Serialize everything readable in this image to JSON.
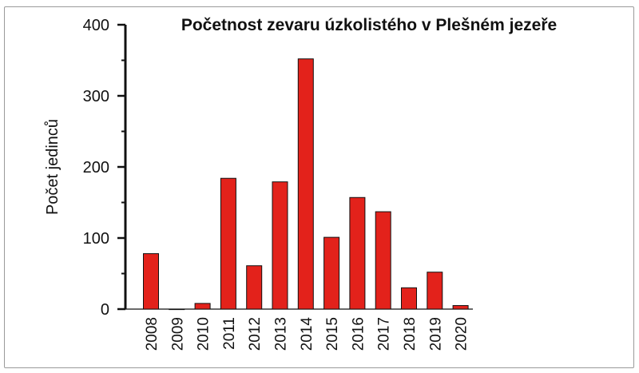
{
  "chart_data": {
    "type": "bar",
    "title": "Početnost zevaru úzkolistého v Plešném jezeře",
    "ylabel": "Počet jedinců",
    "xlabel": "",
    "ylim": [
      0,
      400
    ],
    "yticks": [
      0,
      100,
      200,
      300,
      400
    ],
    "categories": [
      "2008",
      "2009",
      "2010",
      "2011",
      "2012",
      "2013",
      "2014",
      "2015",
      "2016",
      "2017",
      "2018",
      "2019",
      "2020"
    ],
    "values": [
      78,
      0,
      8,
      184,
      61,
      179,
      352,
      101,
      157,
      137,
      30,
      52,
      5
    ],
    "colors": {
      "bar": "#e3221b",
      "bar_outline": "#111111",
      "axis": "#111111",
      "frame": "#9a9a9a"
    }
  }
}
